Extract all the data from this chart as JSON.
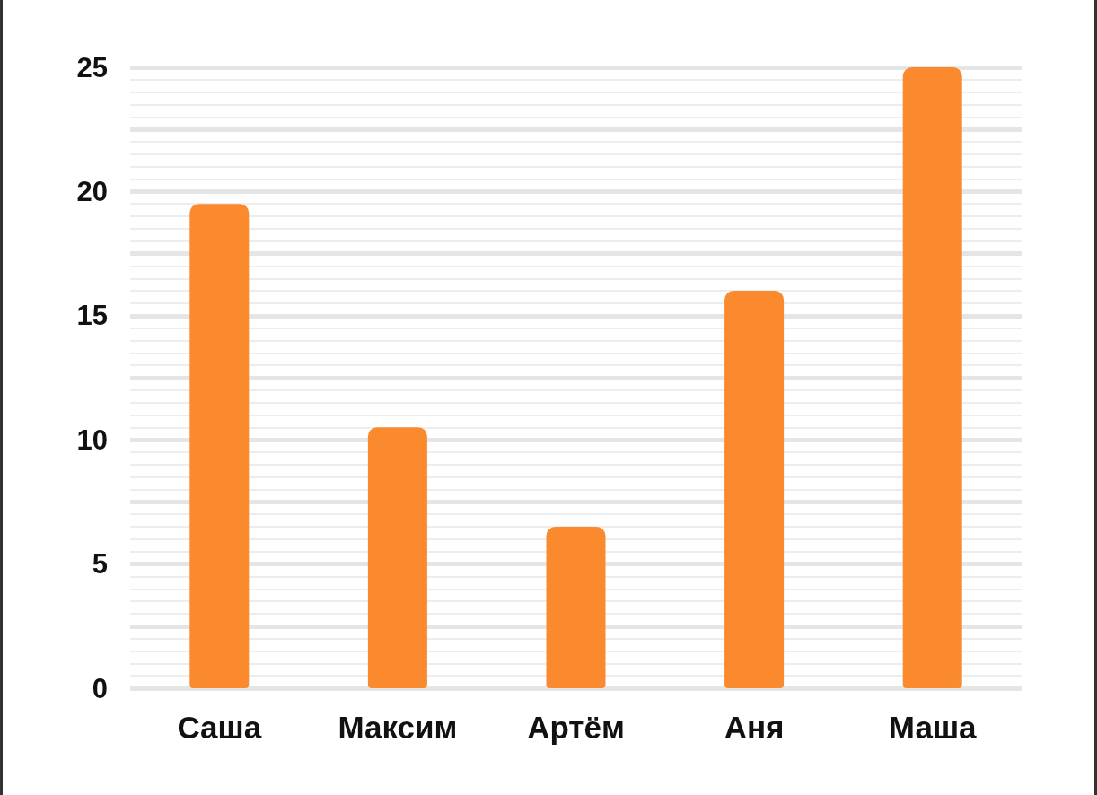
{
  "chart_data": {
    "type": "bar",
    "categories": [
      "Саша",
      "Максим",
      "Артём",
      "Аня",
      "Маша"
    ],
    "values": [
      19.5,
      10.5,
      6.5,
      16,
      25
    ],
    "color": "#fb8a2e",
    "ylim": [
      0,
      25
    ],
    "yticks": [
      0,
      {
        "value": 2.5,
        "label": null
      },
      5,
      {
        "value": 7.5,
        "label": null
      },
      10,
      {
        "value": 12.5,
        "label": null
      },
      15,
      {
        "value": 17.5,
        "label": null
      },
      20,
      {
        "value": 22.5,
        "label": null
      },
      25
    ],
    "grid": "y"
  }
}
